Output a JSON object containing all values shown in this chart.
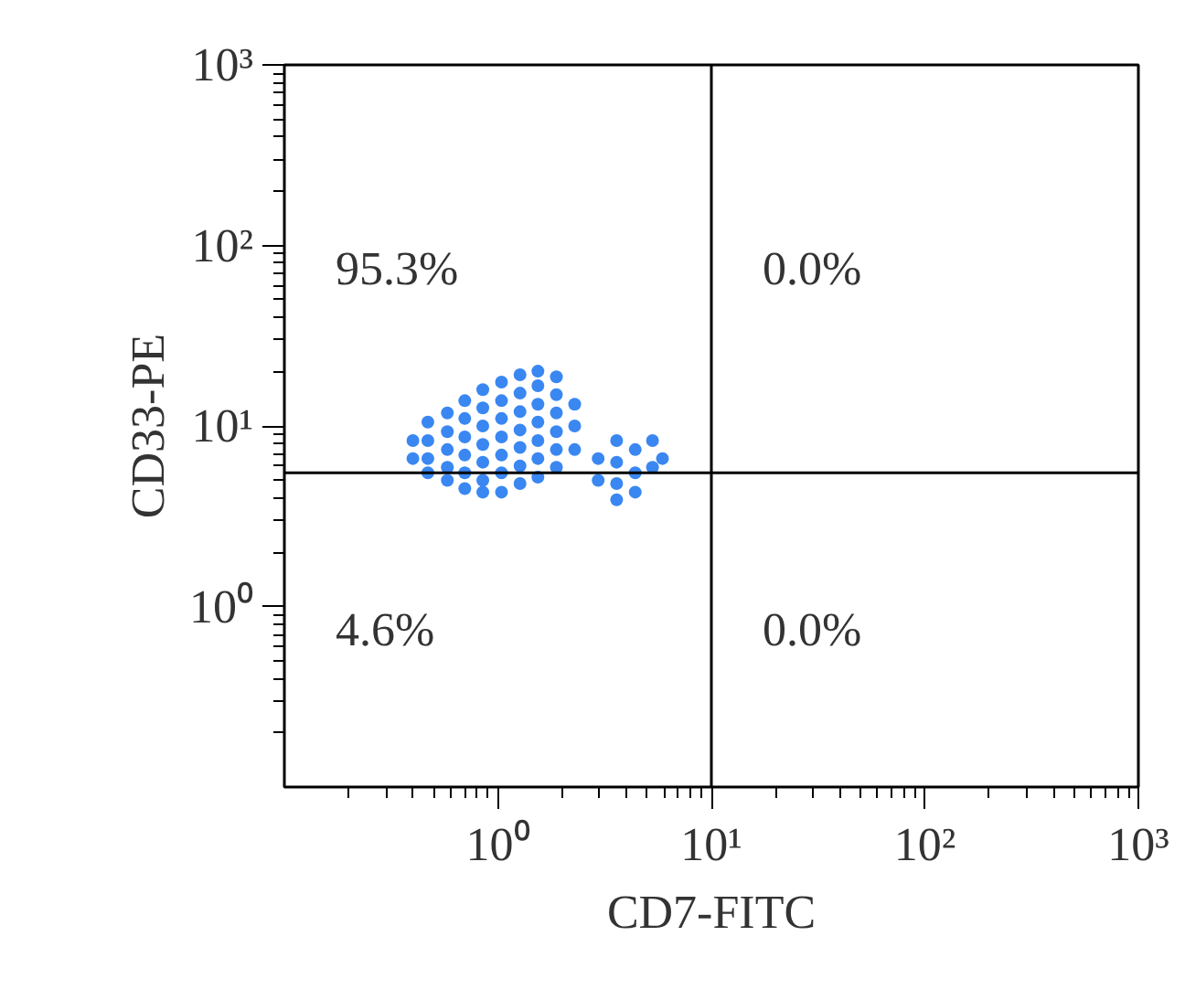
{
  "chart_data": {
    "type": "scatter",
    "xlabel": "CD7-FITC",
    "ylabel": "CD33-PE",
    "log": "xy",
    "grid": false,
    "marker": "circle",
    "xlim": [
      0.1,
      1000
    ],
    "ylim": [
      0.1,
      1000
    ],
    "xticks": [
      {
        "value": 1,
        "label": "10⁰"
      },
      {
        "value": 10,
        "label": "10¹"
      },
      {
        "value": 100,
        "label": "10²"
      },
      {
        "value": 1000,
        "label": "10³"
      }
    ],
    "yticks": [
      {
        "value": 1,
        "label": "10⁰"
      },
      {
        "value": 10,
        "label": "10¹"
      },
      {
        "value": 100,
        "label": "10²"
      },
      {
        "value": 1000,
        "label": "10³"
      }
    ],
    "ref_lines": [
      {
        "axis": "x",
        "value": 10,
        "color": "#000000"
      },
      {
        "axis": "y",
        "value": 5.5,
        "color": "#000000"
      }
    ],
    "annotations": [
      "95.3%",
      "0.0%",
      "4.6%",
      "0.0%"
    ],
    "series": [
      {
        "color": "#3a87f2",
        "x": [
          0.4,
          0.4,
          0.47,
          0.47,
          0.47,
          0.47,
          0.58,
          0.58,
          0.58,
          0.58,
          0.58,
          0.7,
          0.7,
          0.7,
          0.7,
          0.7,
          0.7,
          0.85,
          0.85,
          0.85,
          0.85,
          0.85,
          0.85,
          0.85,
          1.04,
          1.04,
          1.04,
          1.04,
          1.04,
          1.04,
          1.04,
          1.27,
          1.27,
          1.27,
          1.27,
          1.27,
          1.27,
          1.27,
          1.54,
          1.54,
          1.54,
          1.54,
          1.54,
          1.54,
          1.54,
          1.88,
          1.88,
          1.88,
          1.88,
          1.88,
          1.88,
          2.29,
          2.29,
          2.29,
          2.95,
          2.95,
          3.6,
          3.6,
          3.6,
          3.6,
          4.4,
          4.4,
          4.4,
          5.3,
          5.3,
          5.9
        ],
        "values": [
          8.3,
          6.6,
          10.5,
          8.3,
          6.6,
          5.5,
          11.8,
          9.3,
          7.4,
          5.9,
          5.0,
          13.8,
          11.0,
          8.7,
          6.9,
          5.5,
          4.5,
          15.9,
          12.6,
          10.0,
          7.9,
          6.3,
          5.0,
          4.3,
          17.5,
          13.8,
          11.0,
          8.7,
          6.9,
          5.5,
          4.3,
          19.2,
          15.2,
          12.0,
          9.5,
          7.6,
          6.0,
          4.8,
          20.1,
          16.7,
          13.2,
          10.5,
          8.3,
          6.6,
          5.2,
          18.7,
          14.9,
          11.8,
          9.3,
          7.4,
          5.9,
          13.2,
          10.0,
          7.4,
          6.6,
          5.0,
          8.3,
          6.3,
          4.8,
          3.9,
          7.4,
          5.5,
          4.3,
          8.3,
          5.9,
          6.6
        ]
      }
    ]
  }
}
